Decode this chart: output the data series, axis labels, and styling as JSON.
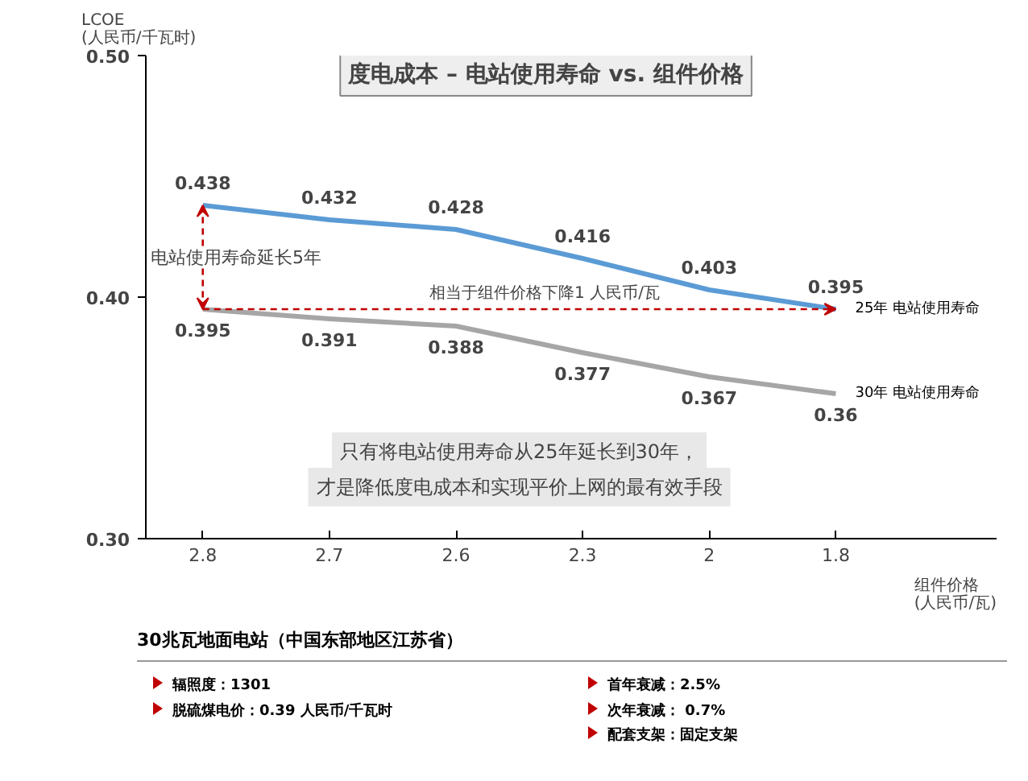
{
  "chart_data": {
    "type": "line",
    "title": "度电成本 – 电站使用寿命 vs. 组件价格",
    "ylabel": "LCOE\n(人民币/千瓦时)",
    "xlabel": "组件价格\n(人民币/瓦)",
    "categories": [
      "2.8",
      "2.7",
      "2.6",
      "2.3",
      "2",
      "1.8"
    ],
    "series": [
      {
        "name": "25年 电站使用寿命",
        "color": "#5b9bd5",
        "values": [
          0.438,
          0.432,
          0.428,
          0.416,
          0.403,
          0.395
        ]
      },
      {
        "name": "30年 电站使用寿命",
        "color": "#a6a6a6",
        "values": [
          0.395,
          0.391,
          0.388,
          0.377,
          0.367,
          0.36
        ]
      }
    ],
    "ylim": [
      0.3,
      0.5
    ],
    "yticks": [
      {
        "value": 0.3,
        "label": "0.30"
      },
      {
        "value": 0.4,
        "label": "0.40"
      },
      {
        "value": 0.5,
        "label": "0.50"
      }
    ],
    "data_labels": true,
    "grid": false,
    "marker": "none",
    "line_style": "solid",
    "ref_lines": [
      {
        "axis": "y",
        "value": 0.395,
        "label": "相当于组件价格下降1 人民币/瓦",
        "color": "#c00000",
        "line_style": "dashed"
      }
    ],
    "annotations": [
      {
        "text": "电站使用寿命延长5年",
        "x": "2.8",
        "y": 0.438
      },
      "只有将电站使用寿命从25年延长到30年，",
      "才是降低度电成本和实现平价上网的最有效手段",
      "30兆瓦地面电站（中国东部地区江苏省）",
      "辐照度：1301",
      "脱硫煤电价：0.39 人民币/千瓦时",
      "首年衰减：2.5%",
      "次年衰减： 0.7%",
      "配套支架：固定支架"
    ]
  }
}
